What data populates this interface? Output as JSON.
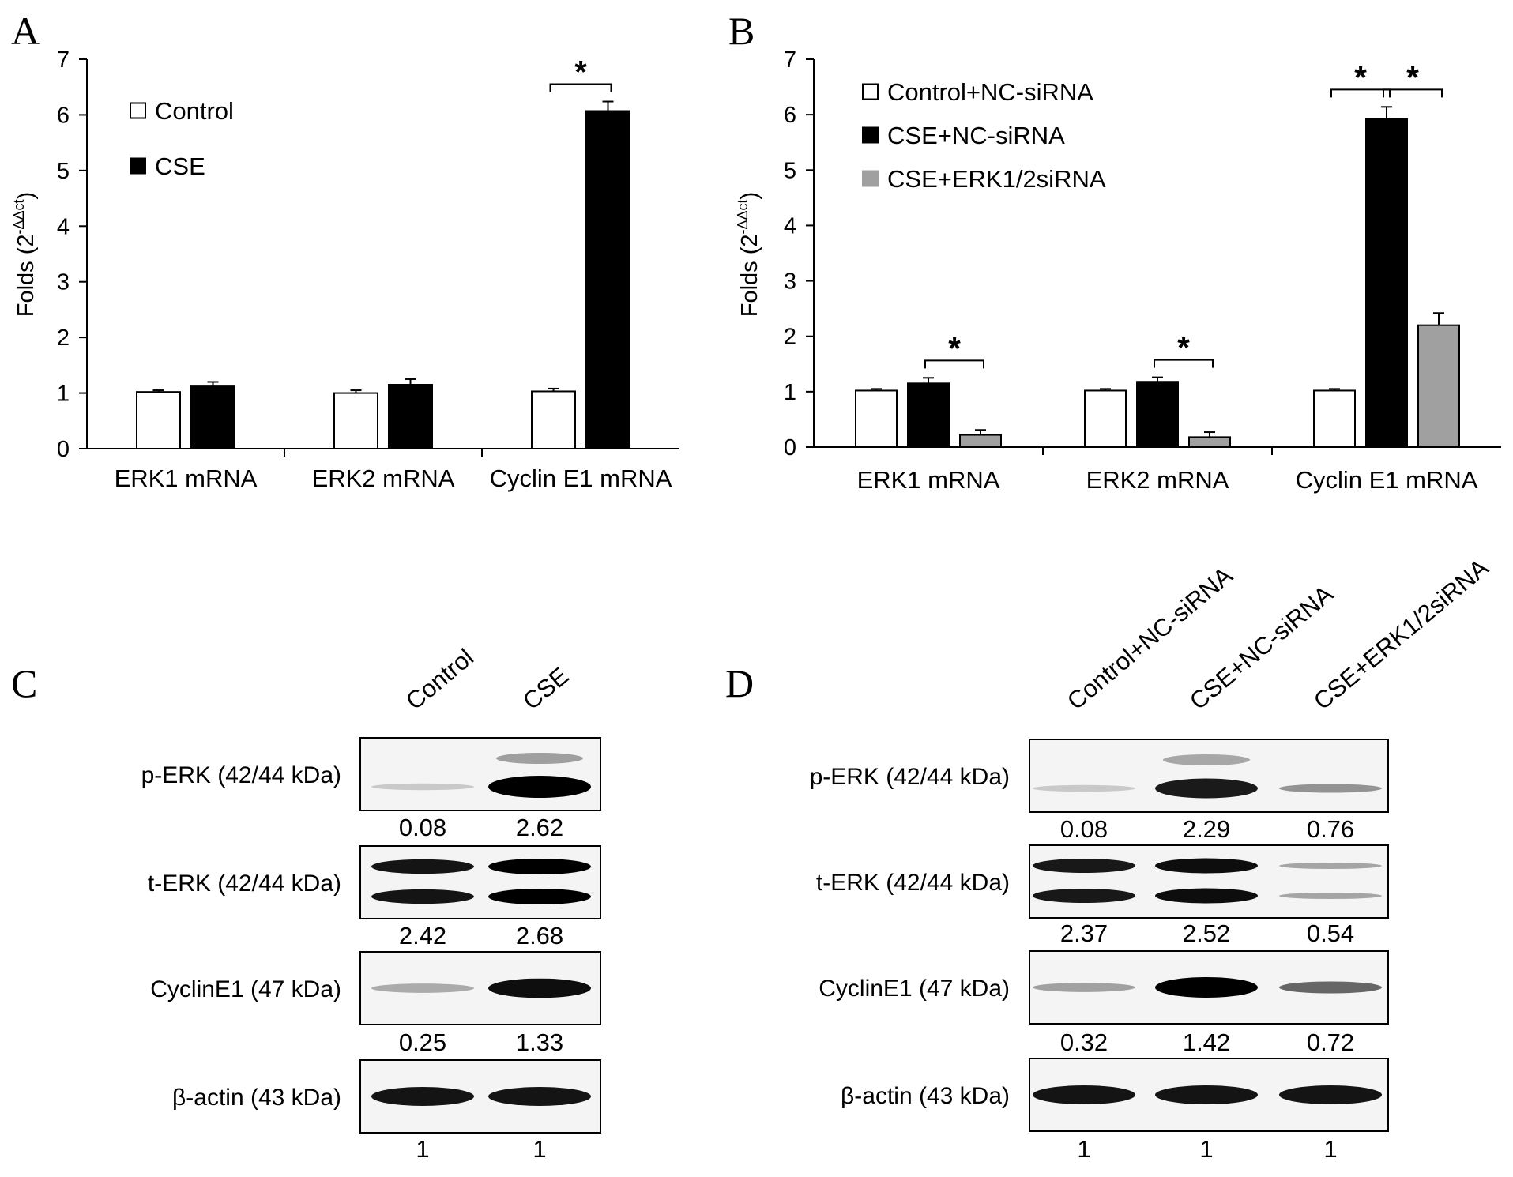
{
  "panels": {
    "A": "A",
    "B": "B",
    "C": "C",
    "D": "D"
  },
  "chart_data": [
    {
      "type": "bar",
      "panel": "A",
      "ylabel_main": "Folds (2",
      "ylabel_sup": "-ΔΔct",
      "ylabel_end": ")",
      "ylim": [
        0,
        7
      ],
      "yticks": [
        "0",
        "1",
        "2",
        "3",
        "4",
        "5",
        "6",
        "7"
      ],
      "categories": [
        "ERK1 mRNA",
        "ERK2 mRNA",
        "Cyclin E1 mRNA"
      ],
      "series": [
        {
          "name": "Control",
          "color": "#ffffff",
          "values": [
            1.02,
            1.0,
            1.03
          ],
          "errors": [
            0.03,
            0.05,
            0.05
          ]
        },
        {
          "name": "CSE",
          "color": "#000000",
          "values": [
            1.12,
            1.15,
            6.07
          ],
          "errors": [
            0.08,
            0.1,
            0.17
          ]
        }
      ],
      "significance": [
        {
          "category": 2,
          "from": 0,
          "to": 1,
          "label": "*"
        }
      ],
      "legend_position": "top-left"
    },
    {
      "type": "bar",
      "panel": "B",
      "ylabel_main": "Folds (2",
      "ylabel_sup": "-ΔΔct",
      "ylabel_end": ")",
      "ylim": [
        0,
        7
      ],
      "yticks": [
        "0",
        "1",
        "2",
        "3",
        "4",
        "5",
        "6",
        "7"
      ],
      "categories": [
        "ERK1 mRNA",
        "ERK2 mRNA",
        "Cyclin E1 mRNA"
      ],
      "series": [
        {
          "name": "Control+NC-siRNA",
          "color": "#ffffff",
          "values": [
            1.02,
            1.02,
            1.02
          ],
          "errors": [
            0.03,
            0.03,
            0.03
          ]
        },
        {
          "name": "CSE+NC-siRNA",
          "color": "#000000",
          "values": [
            1.15,
            1.18,
            5.92
          ],
          "errors": [
            0.1,
            0.08,
            0.22
          ]
        },
        {
          "name": "CSE+ERK1/2siRNA",
          "color": "#a0a0a0",
          "values": [
            0.22,
            0.18,
            2.2
          ],
          "errors": [
            0.09,
            0.09,
            0.22
          ]
        }
      ],
      "significance": [
        {
          "category": 0,
          "from": 1,
          "to": 2,
          "label": "*"
        },
        {
          "category": 1,
          "from": 1,
          "to": 2,
          "label": "*"
        },
        {
          "category": 2,
          "from": 0,
          "to": 1,
          "label": "*"
        },
        {
          "category": 2,
          "from": 1,
          "to": 2,
          "label": "*"
        }
      ],
      "legend_position": "top-left"
    }
  ],
  "blots": {
    "C": {
      "lanes": [
        "Control",
        "CSE"
      ],
      "rows": [
        {
          "label": "p-ERK (42/44 kDa)",
          "values": [
            "0.08",
            "2.62"
          ]
        },
        {
          "label": "t-ERK (42/44 kDa)",
          "values": [
            "2.42",
            "2.68"
          ]
        },
        {
          "label": "CyclinE1 (47 kDa)",
          "values": [
            "0.25",
            "1.33"
          ]
        },
        {
          "label": "β-actin (43 kDa)",
          "values": [
            "1",
            "1"
          ]
        }
      ]
    },
    "D": {
      "lanes": [
        "Control+NC-siRNA",
        "CSE+NC-siRNA",
        "CSE+ERK1/2siRNA"
      ],
      "rows": [
        {
          "label": "p-ERK (42/44 kDa)",
          "values": [
            "0.08",
            "2.29",
            "0.76"
          ]
        },
        {
          "label": "t-ERK (42/44 kDa)",
          "values": [
            "2.37",
            "2.52",
            "0.54"
          ]
        },
        {
          "label": "CyclinE1 (47 kDa)",
          "values": [
            "0.32",
            "1.42",
            "0.72"
          ]
        },
        {
          "label": "β-actin (43 kDa)",
          "values": [
            "1",
            "1",
            "1"
          ]
        }
      ]
    }
  }
}
